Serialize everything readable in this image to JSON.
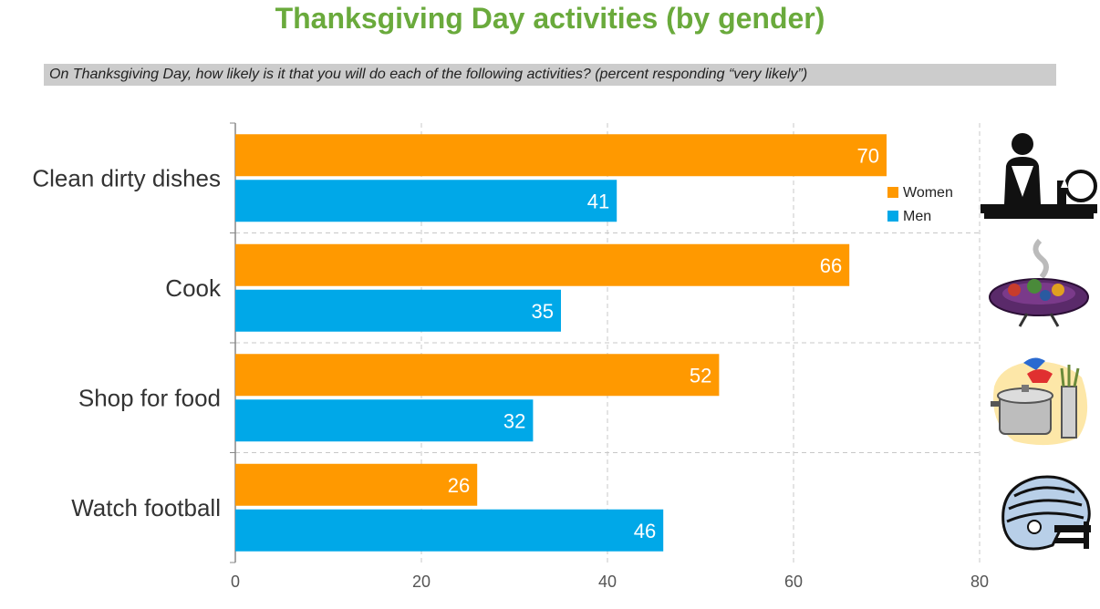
{
  "title": "Thanksgiving Day activities (by gender)",
  "subtitle": "On Thanksgiving Day, how likely is it that you will do each of the following activities? (percent responding “very likely”)",
  "colors": {
    "women": "#ff9900",
    "men": "#00a8e8",
    "title": "#6aaa3c",
    "grid": "#c8c8c8"
  },
  "chart_data": {
    "type": "bar",
    "orientation": "horizontal",
    "categories": [
      "Clean dirty dishes",
      "Cook",
      "Shop for food",
      "Watch football"
    ],
    "series": [
      {
        "name": "Women",
        "values": [
          70,
          66,
          52,
          26
        ]
      },
      {
        "name": "Men",
        "values": [
          41,
          35,
          32,
          46
        ]
      }
    ],
    "xlim": [
      0,
      80
    ],
    "xticks": [
      0,
      20,
      40,
      60,
      80
    ],
    "grid": true,
    "legend_position": "right",
    "data_labels": true
  },
  "icons": [
    "man-washing-dishes-icon",
    "dinner-plate-icon",
    "cooking-pot-icon",
    "football-helmet-icon"
  ]
}
